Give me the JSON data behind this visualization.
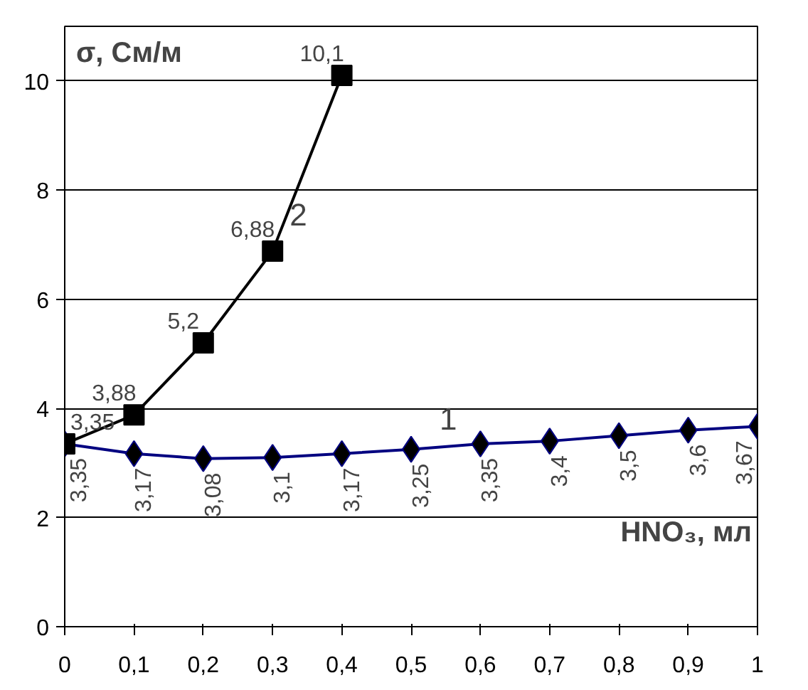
{
  "chart_data": {
    "type": "line",
    "ylabel": "σ, См/м",
    "xlabel": "HNO₃, мл",
    "x": [
      0,
      0.1,
      0.2,
      0.3,
      0.4,
      0.5,
      0.6,
      0.7,
      0.8,
      0.9,
      1
    ],
    "series": [
      {
        "name": "1",
        "color": "#000080",
        "marker": "diamond",
        "values": [
          3.35,
          3.17,
          3.08,
          3.1,
          3.17,
          3.25,
          3.35,
          3.4,
          3.5,
          3.6,
          3.67
        ],
        "value_labels": [
          "3,35",
          "3,17",
          "3,08",
          "3,1",
          "3,17",
          "3,25",
          "3,35",
          "3,4",
          "3,5",
          "3,6",
          "3,67"
        ]
      },
      {
        "name": "2",
        "color": "#000000",
        "marker": "square",
        "values": [
          3.35,
          3.88,
          5.2,
          6.88,
          10.1,
          null,
          null,
          null,
          null,
          null,
          null
        ],
        "value_labels": [
          "3,35",
          "3,88",
          "5,2",
          "6,88",
          "10,1",
          null,
          null,
          null,
          null,
          null,
          null
        ]
      }
    ],
    "xlim": [
      0,
      1
    ],
    "ylim": [
      0,
      11
    ],
    "xticks": [
      0,
      {
        "value": 0.1,
        "label": "0,1"
      },
      {
        "value": 0.2,
        "label": "0,2"
      },
      {
        "value": 0.3,
        "label": "0,3"
      },
      {
        "value": 0.4,
        "label": "0,4"
      },
      {
        "value": 0.5,
        "label": "0,5"
      },
      {
        "value": 0.6,
        "label": "0,6"
      },
      {
        "value": 0.7,
        "label": "0,7"
      },
      {
        "value": 0.8,
        "label": "0,8"
      },
      {
        "value": 0.9,
        "label": "0,9"
      },
      1
    ],
    "yticks": [
      0,
      2,
      4,
      6,
      8,
      10
    ],
    "grid": "y"
  }
}
